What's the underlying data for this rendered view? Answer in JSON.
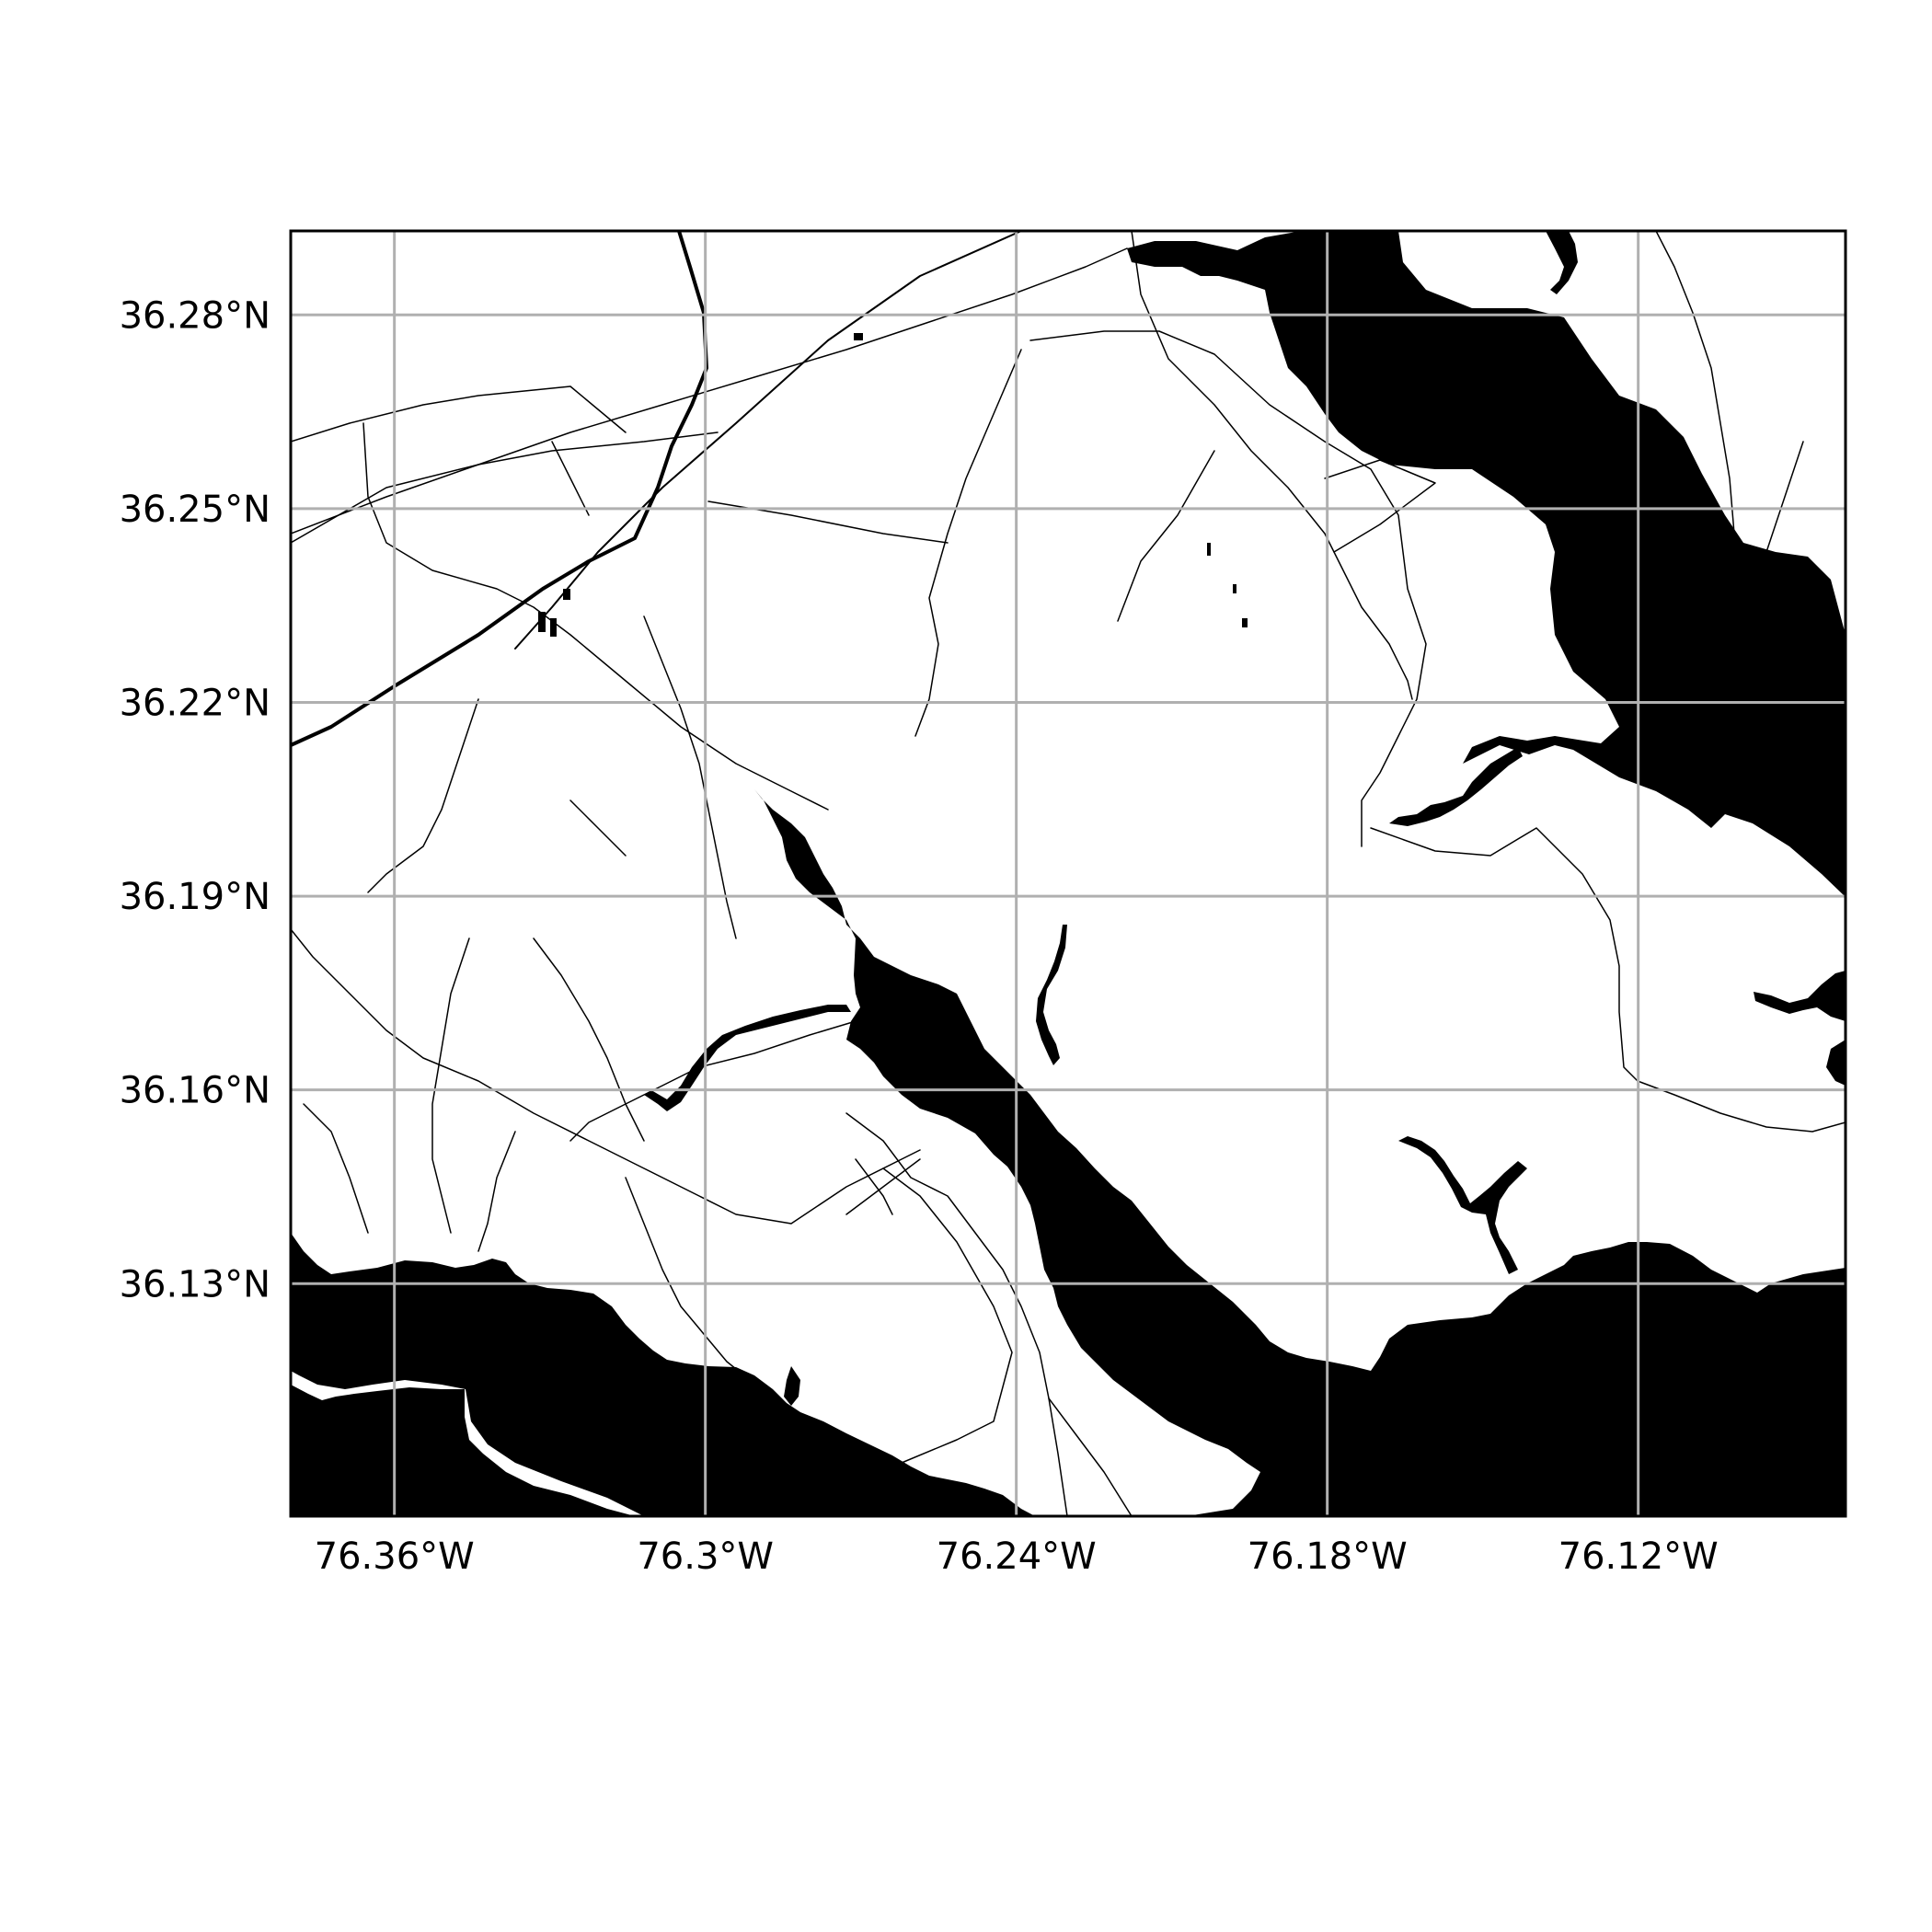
{
  "map": {
    "type": "map",
    "background": "#ffffff",
    "water_color": "#000000",
    "road_color": "#000000",
    "grid": true,
    "grid_color": "#b0b0b0",
    "x_axis": {
      "unit": "degrees longitude (W)",
      "range": [
        -76.38,
        -76.08
      ],
      "ticks": [
        {
          "value": -76.36,
          "label": "76.36°W"
        },
        {
          "value": -76.3,
          "label": "76.3°W"
        },
        {
          "value": -76.24,
          "label": "76.24°W"
        },
        {
          "value": -76.18,
          "label": "76.18°W"
        },
        {
          "value": -76.12,
          "label": "76.12°W"
        }
      ]
    },
    "y_axis": {
      "unit": "degrees latitude (N)",
      "range": [
        36.094,
        36.293
      ],
      "ticks": [
        {
          "value": 36.28,
          "label": "36.28°N"
        },
        {
          "value": 36.25,
          "label": "36.25°N"
        },
        {
          "value": 36.22,
          "label": "36.22°N"
        },
        {
          "value": 36.19,
          "label": "36.19°N"
        },
        {
          "value": 36.16,
          "label": "36.16°N"
        },
        {
          "value": 36.13,
          "label": "36.13°N"
        }
      ]
    },
    "layers": [
      "water",
      "roads",
      "graticule"
    ]
  }
}
